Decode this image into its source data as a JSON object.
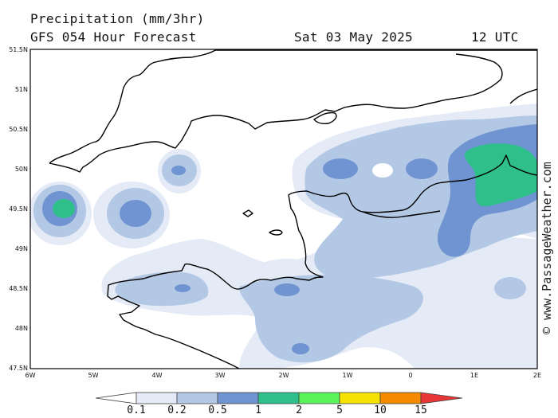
{
  "header": {
    "title": "Precipitation (mm/3hr)",
    "subtitle": "GFS 054 Hour Forecast",
    "valid_date": "Sat 03 May 2025",
    "valid_time": "12 UTC"
  },
  "axes": {
    "lat_labels": [
      "51.5N",
      "51N",
      "50.5N",
      "50N",
      "49.5N",
      "49N",
      "48.5N",
      "48N",
      "47.5N"
    ],
    "lon_labels": [
      "6W",
      "5W",
      "4W",
      "3W",
      "2W",
      "1W",
      "0",
      "1E",
      "2E"
    ]
  },
  "colorbar": {
    "labels": [
      "0.1",
      "0.2",
      "0.5",
      "1",
      "2",
      "5",
      "10",
      "15"
    ],
    "colors": [
      "#e4ebf6",
      "#b3c8e4",
      "#6f94d1",
      "#2fbf8a",
      "#5cf25c",
      "#f5e200",
      "#f58a00",
      "#e83535"
    ],
    "low_color": "#ffffff"
  },
  "credit": "© www.PassageWeather.com",
  "colors": {
    "light": "#e4ebf6",
    "mid": "#b3c8e4",
    "blue": "#6f94d1",
    "green": "#2fbf8a",
    "coast": "#000000"
  }
}
